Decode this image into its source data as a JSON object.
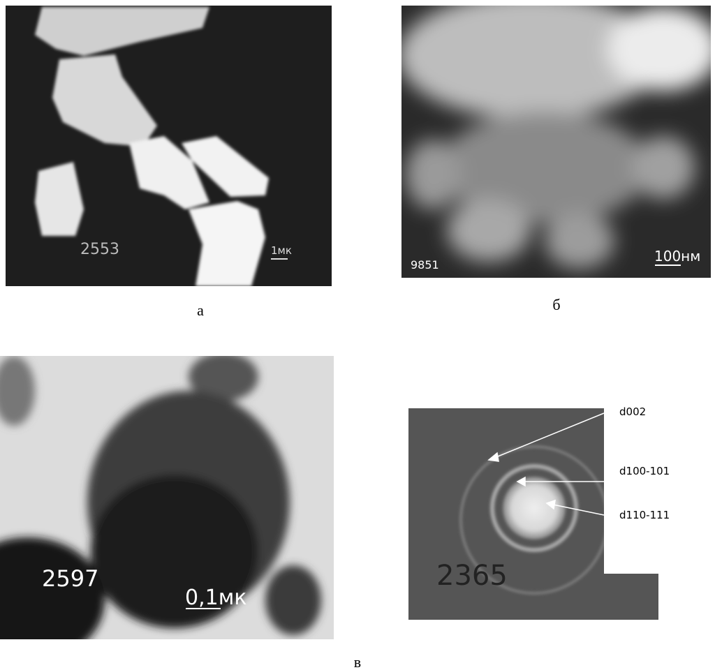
{
  "panels": [
    {
      "id": "2553",
      "scale": "1мк",
      "caption": "а"
    },
    {
      "id": "9851",
      "scale": "100нм",
      "caption": "б"
    },
    {
      "id": "2597",
      "scale": "0,1мк"
    },
    {
      "id": "2365",
      "labels": [
        "d002",
        "d100-101",
        "d110-111"
      ]
    }
  ],
  "caption": "в"
}
